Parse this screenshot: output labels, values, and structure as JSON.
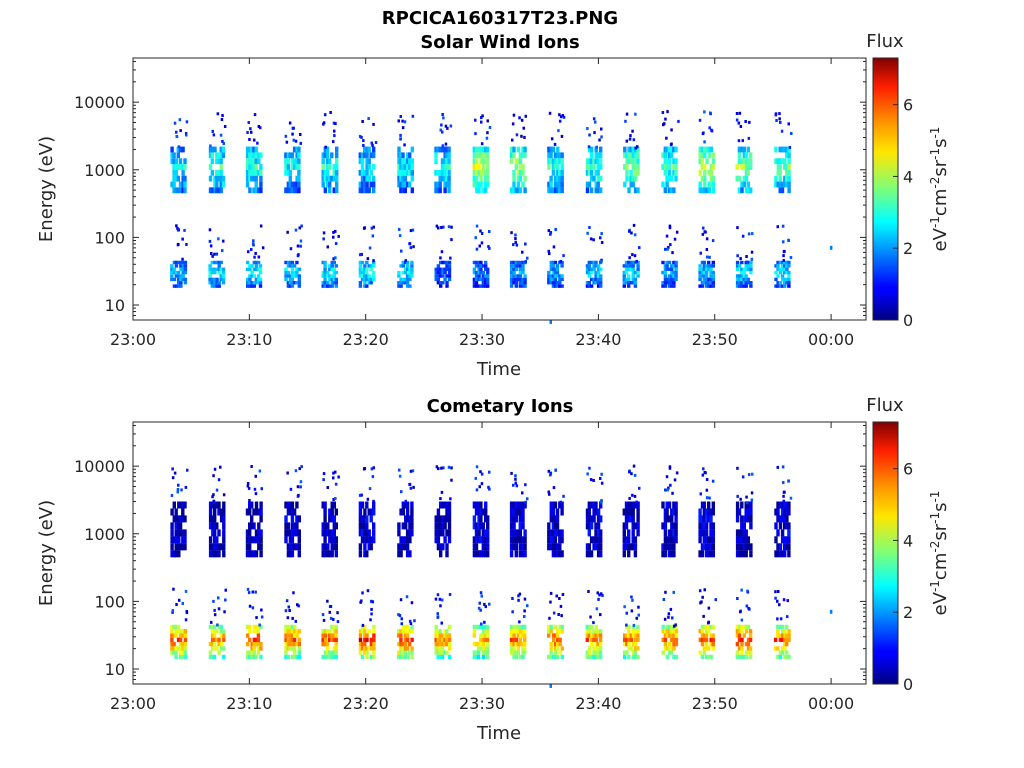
{
  "figure": {
    "title": "RPCICA160317T23.PNG"
  },
  "chart_data": [
    {
      "type": "heatmap",
      "title": "Solar Wind Ions",
      "xlabel": "Time",
      "ylabel": "Energy (eV)",
      "x_ticks": [
        "23:00",
        "23:10",
        "23:20",
        "23:30",
        "23:40",
        "23:50",
        "00:00"
      ],
      "x_range": [
        "23:00",
        "00:03"
      ],
      "y_scale": "log",
      "y_ticks": [
        "10",
        "100",
        "1000",
        "10000"
      ],
      "ylim": [
        6,
        45000
      ],
      "colorbar": {
        "label": "Flux",
        "units": "eV-1cm-2sr-1s-1",
        "ticks": [
          "0",
          "2",
          "4",
          "6"
        ],
        "range": [
          0,
          7.3
        ],
        "colormap": "jet"
      },
      "sweeps_start_min": [
        3.2,
        6.5,
        9.7,
        13.0,
        16.2,
        19.4,
        22.7,
        25.9,
        29.2,
        32.4,
        35.6,
        38.9,
        42.1,
        45.4,
        48.6,
        51.8,
        55.1
      ],
      "bands": [
        {
          "band": "low energy (20-45 eV)",
          "energy_range": [
            18,
            45
          ],
          "flux": [
            2.2,
            2.6,
            2.8,
            2.4,
            2.5,
            2.7,
            2.6,
            1.5,
            1.8,
            2.0,
            2.0,
            2.3,
            2.4,
            2.1,
            2.2,
            2.5,
            2.5
          ]
        },
        {
          "band": "high energy (500-2000 eV)",
          "energy_range": [
            450,
            2200
          ],
          "flux": [
            2.6,
            3.0,
            2.9,
            2.6,
            2.8,
            2.5,
            2.6,
            2.8,
            4.0,
            3.8,
            2.9,
            3.0,
            3.5,
            3.2,
            3.9,
            3.6,
            3.3
          ]
        }
      ],
      "isolated_points": [
        [
          35.8,
          6
        ],
        [
          59.9,
          75
        ]
      ]
    },
    {
      "type": "heatmap",
      "title": "Cometary Ions",
      "xlabel": "Time",
      "ylabel": "Energy (eV)",
      "x_ticks": [
        "23:00",
        "23:10",
        "23:20",
        "23:30",
        "23:40",
        "23:50",
        "00:00"
      ],
      "x_range": [
        "23:00",
        "00:03"
      ],
      "y_scale": "log",
      "y_ticks": [
        "10",
        "100",
        "1000",
        "10000"
      ],
      "ylim": [
        6,
        45000
      ],
      "colorbar": {
        "label": "Flux",
        "units": "eV-1cm-2sr-1s-1",
        "ticks": [
          "0",
          "2",
          "4",
          "6"
        ],
        "range": [
          0,
          7.3
        ],
        "colormap": "jet"
      },
      "sweeps_start_min": [
        3.2,
        6.5,
        9.7,
        13.0,
        16.2,
        19.4,
        22.7,
        25.9,
        29.2,
        32.4,
        35.6,
        38.9,
        42.1,
        45.4,
        48.6,
        51.8,
        55.1
      ],
      "bands": [
        {
          "band": "low energy (15-45 eV)",
          "energy_range": [
            14,
            45
          ],
          "flux": [
            5.6,
            5.0,
            5.8,
            5.4,
            5.5,
            6.0,
            5.8,
            5.2,
            5.0,
            5.3,
            5.6,
            5.4,
            5.4,
            5.5,
            5.7,
            5.8,
            5.5
          ]
        },
        {
          "band": "high energy (500-3000 eV)",
          "energy_range": [
            450,
            3000
          ],
          "flux": [
            0.4,
            0.5,
            0.4,
            0.5,
            0.4,
            0.6,
            0.5,
            0.4,
            0.7,
            0.6,
            0.5,
            0.6,
            0.5,
            0.6,
            0.7,
            0.5,
            0.6
          ]
        }
      ],
      "isolated_points": [
        [
          35.8,
          6
        ],
        [
          59.9,
          75
        ]
      ]
    }
  ]
}
